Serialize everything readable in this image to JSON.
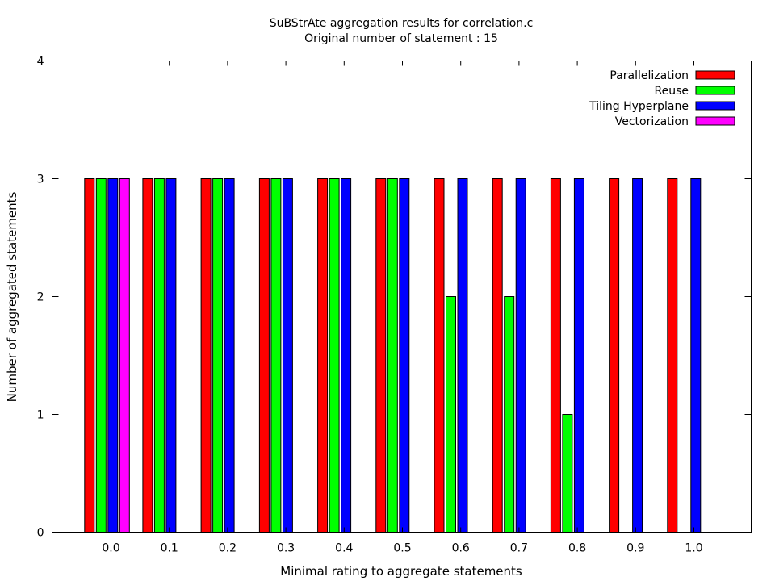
{
  "chart_data": {
    "type": "bar",
    "title": "SuBStrAte aggregation results for correlation.c",
    "subtitle": "Original number of statement : 15",
    "xlabel": "Minimal rating to aggregate statements",
    "ylabel": "Number of aggregated statements",
    "categories": [
      "0.0",
      "0.1",
      "0.2",
      "0.3",
      "0.4",
      "0.5",
      "0.6",
      "0.7",
      "0.8",
      "0.9",
      "1.0"
    ],
    "ylim": [
      0,
      4
    ],
    "yticks": [
      "0",
      "1",
      "2",
      "3",
      "4"
    ],
    "grid": false,
    "legend_position": "top-right",
    "series": [
      {
        "name": "Parallelization",
        "color": "#ff0000",
        "values": [
          3,
          3,
          3,
          3,
          3,
          3,
          3,
          3,
          3,
          3,
          3
        ]
      },
      {
        "name": "Reuse",
        "color": "#00ff00",
        "values": [
          3,
          3,
          3,
          3,
          3,
          3,
          2,
          2,
          1,
          0,
          0
        ]
      },
      {
        "name": "Tiling Hyperplane",
        "color": "#0000ff",
        "values": [
          3,
          3,
          3,
          3,
          3,
          3,
          3,
          3,
          3,
          3,
          3
        ]
      },
      {
        "name": "Vectorization",
        "color": "#ff00ff",
        "values": [
          3,
          0,
          0,
          0,
          0,
          0,
          0,
          0,
          0,
          0,
          0
        ]
      }
    ]
  }
}
